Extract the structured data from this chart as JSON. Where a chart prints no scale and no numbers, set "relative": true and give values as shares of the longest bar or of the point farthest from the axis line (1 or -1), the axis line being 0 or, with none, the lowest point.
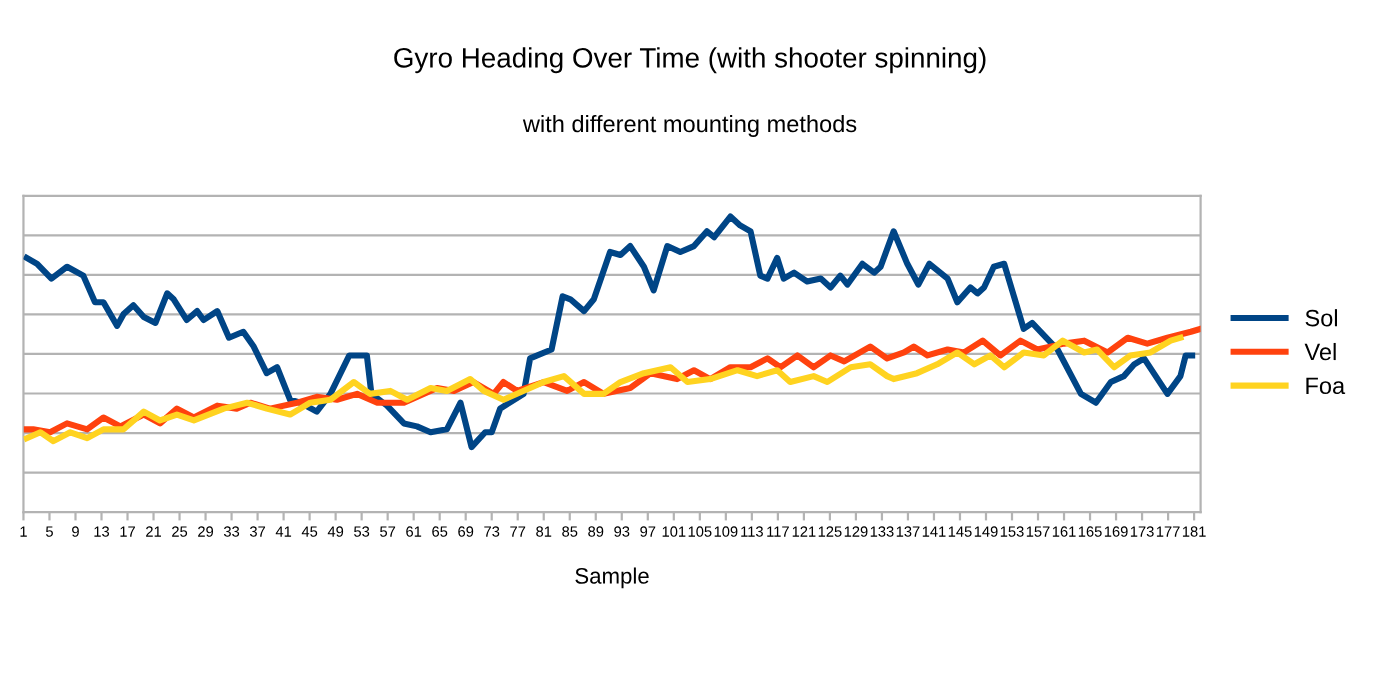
{
  "chart_data": {
    "type": "line",
    "title": "Gyro Heading Over Time (with shooter spinning)",
    "subtitle": "with different mounting methods",
    "xlabel": "Sample",
    "relative": true,
    "grid": "y",
    "legend": "right",
    "tick_labels": "x",
    "marker": "none",
    "line_style": "solid",
    "xlim": [
      1,
      182
    ],
    "xticks": [
      1,
      5,
      9,
      13,
      17,
      21,
      25,
      29,
      33,
      37,
      41,
      45,
      49,
      53,
      57,
      61,
      65,
      69,
      73,
      77,
      81,
      85,
      89,
      93,
      97,
      101,
      105,
      109,
      113,
      117,
      121,
      125,
      129,
      133,
      137,
      141,
      145,
      149,
      153,
      157,
      161,
      165,
      169,
      173,
      177,
      181
    ],
    "series": [
      {
        "name": "Sol",
        "color": "#004586",
        "x": [
          1.5,
          3.1,
          5.3,
          7.7,
          10.2,
          12.0,
          13.3,
          15.4,
          16.4,
          17.9,
          19.5,
          21.3,
          23.1,
          24.1,
          26.1,
          27.7,
          28.7,
          30.8,
          32.6,
          34.8,
          36.4,
          38.4,
          40.0,
          42.0,
          43.6,
          46.1,
          48.2,
          51.1,
          53.8,
          54.5,
          56.9,
          59.5,
          61.5,
          63.6,
          66.1,
          68.2,
          69.9,
          72.0,
          73.0,
          74.3,
          77.9,
          78.9,
          82.2,
          83.9,
          85.1,
          87.2,
          88.7,
          91.2,
          92.8,
          94.3,
          96.4,
          97.9,
          100.0,
          102.0,
          104.1,
          106.1,
          107.2,
          109.7,
          111.2,
          112.8,
          114.3,
          115.4,
          116.9,
          117.9,
          119.5,
          121.5,
          123.6,
          125.1,
          126.6,
          127.7,
          130.0,
          131.8,
          132.8,
          134.8,
          136.9,
          138.6,
          140.3,
          143.1,
          144.6,
          146.6,
          147.7,
          148.7,
          150.2,
          151.8,
          154.8,
          156.1,
          160.0,
          163.6,
          165.9,
          168.2,
          170.2,
          171.8,
          173.3,
          176.9,
          178.9,
          179.7,
          180.7
        ],
        "values": [
          0.86,
          0.84,
          0.79,
          0.83,
          0.8,
          0.71,
          0.71,
          0.63,
          0.67,
          0.7,
          0.66,
          0.64,
          0.74,
          0.72,
          0.65,
          0.68,
          0.65,
          0.68,
          0.59,
          0.61,
          0.56,
          0.47,
          0.49,
          0.38,
          0.37,
          0.34,
          0.4,
          0.53,
          0.53,
          0.4,
          0.36,
          0.3,
          0.29,
          0.27,
          0.28,
          0.37,
          0.22,
          0.27,
          0.27,
          0.35,
          0.4,
          0.52,
          0.55,
          0.73,
          0.72,
          0.68,
          0.72,
          0.88,
          0.87,
          0.9,
          0.83,
          0.75,
          0.9,
          0.88,
          0.9,
          0.95,
          0.93,
          1.0,
          0.97,
          0.95,
          0.8,
          0.79,
          0.86,
          0.79,
          0.81,
          0.78,
          0.79,
          0.76,
          0.8,
          0.77,
          0.84,
          0.81,
          0.83,
          0.95,
          0.84,
          0.77,
          0.84,
          0.79,
          0.71,
          0.76,
          0.74,
          0.76,
          0.83,
          0.84,
          0.62,
          0.64,
          0.55,
          0.4,
          0.37,
          0.44,
          0.46,
          0.5,
          0.52,
          0.4,
          0.46,
          0.53,
          0.53
        ]
      },
      {
        "name": "Vel",
        "color": "#ff420e",
        "x": [
          1.5,
          2.5,
          5.1,
          7.7,
          10.8,
          13.3,
          15.9,
          19.5,
          22.0,
          24.6,
          27.2,
          30.8,
          33.8,
          35.9,
          38.9,
          43.1,
          46.1,
          49.2,
          52.3,
          55.4,
          59.5,
          64.6,
          67.2,
          70.2,
          73.3,
          74.8,
          76.9,
          81.0,
          84.6,
          87.2,
          90.2,
          94.3,
          97.4,
          101.5,
          104.1,
          106.6,
          109.7,
          112.8,
          115.4,
          117.4,
          120.0,
          122.5,
          125.1,
          127.2,
          131.2,
          133.8,
          136.4,
          137.9,
          140.0,
          143.1,
          145.6,
          148.5,
          151.2,
          154.3,
          156.9,
          161.0,
          164.1,
          167.7,
          170.8,
          173.8,
          176.9,
          180.5,
          182
        ],
        "values": [
          0.28,
          0.28,
          0.27,
          0.3,
          0.28,
          0.32,
          0.29,
          0.33,
          0.3,
          0.35,
          0.32,
          0.36,
          0.35,
          0.37,
          0.35,
          0.37,
          0.39,
          0.38,
          0.4,
          0.37,
          0.37,
          0.42,
          0.41,
          0.44,
          0.4,
          0.44,
          0.41,
          0.44,
          0.41,
          0.44,
          0.4,
          0.42,
          0.47,
          0.45,
          0.48,
          0.45,
          0.49,
          0.49,
          0.52,
          0.49,
          0.53,
          0.49,
          0.53,
          0.51,
          0.56,
          0.52,
          0.54,
          0.56,
          0.53,
          0.55,
          0.54,
          0.58,
          0.53,
          0.58,
          0.55,
          0.57,
          0.58,
          0.54,
          0.59,
          0.57,
          0.59,
          0.61,
          0.62
        ]
      },
      {
        "name": "Foa",
        "color": "#ffd320",
        "x": [
          1.5,
          3.6,
          5.6,
          8.2,
          10.8,
          13.3,
          16.4,
          19.5,
          22.0,
          24.6,
          27.2,
          31.8,
          35.4,
          38.4,
          42.0,
          45.1,
          48.2,
          51.8,
          54.3,
          57.4,
          60.0,
          63.6,
          66.1,
          69.7,
          71.8,
          74.8,
          78.9,
          81.0,
          84.1,
          87.2,
          90.2,
          92.8,
          96.4,
          100.5,
          103.1,
          106.6,
          110.8,
          113.8,
          116.9,
          118.9,
          122.5,
          124.6,
          128.2,
          131.2,
          133.8,
          134.8,
          138.4,
          141.5,
          144.6,
          147.2,
          149.7,
          151.8,
          154.8,
          157.9,
          160.8,
          164.1,
          166.1,
          168.7,
          171.2,
          174.3,
          177.4,
          178.9
        ],
        "values": [
          0.25,
          0.27,
          0.24,
          0.27,
          0.25,
          0.28,
          0.28,
          0.34,
          0.31,
          0.33,
          0.31,
          0.35,
          0.37,
          0.35,
          0.33,
          0.37,
          0.38,
          0.44,
          0.4,
          0.41,
          0.38,
          0.42,
          0.41,
          0.45,
          0.41,
          0.38,
          0.42,
          0.44,
          0.46,
          0.4,
          0.4,
          0.44,
          0.47,
          0.49,
          0.44,
          0.45,
          0.48,
          0.46,
          0.48,
          0.44,
          0.46,
          0.44,
          0.49,
          0.5,
          0.46,
          0.45,
          0.47,
          0.5,
          0.54,
          0.5,
          0.53,
          0.49,
          0.54,
          0.53,
          0.58,
          0.54,
          0.55,
          0.49,
          0.53,
          0.54,
          0.58,
          0.59
        ]
      }
    ]
  }
}
